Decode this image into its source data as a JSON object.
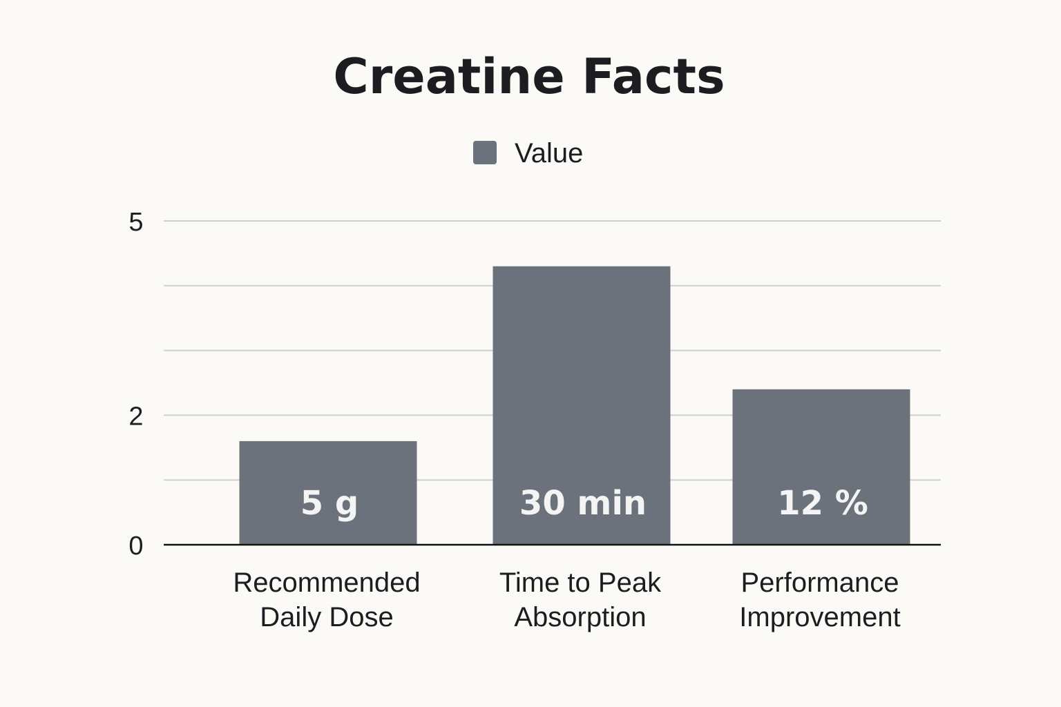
{
  "chart_data": {
    "type": "bar",
    "title": "Creatine Facts",
    "legend": {
      "position": "top-center",
      "entries": [
        {
          "name": "Value",
          "color": "#6c727b"
        }
      ]
    },
    "xlabel": "",
    "ylabel": "",
    "ylim": [
      0,
      5
    ],
    "yticks": [
      {
        "value": 0,
        "label": "0"
      },
      {
        "value": 2,
        "label": "2"
      },
      {
        "value": 5,
        "label": "5"
      }
    ],
    "gridlines": [
      1,
      2,
      3,
      4,
      5
    ],
    "grid": true,
    "categories": [
      [
        "Recommended",
        "Daily Dose"
      ],
      [
        "Time to Peak",
        "Absorption"
      ],
      [
        "Performance",
        "Improvement"
      ]
    ],
    "series": [
      {
        "name": "Value",
        "color": "#6c727b",
        "values": [
          1.6,
          4.3,
          2.4
        ],
        "data_labels": [
          "5 g",
          "30 min",
          "12 %"
        ]
      }
    ]
  }
}
